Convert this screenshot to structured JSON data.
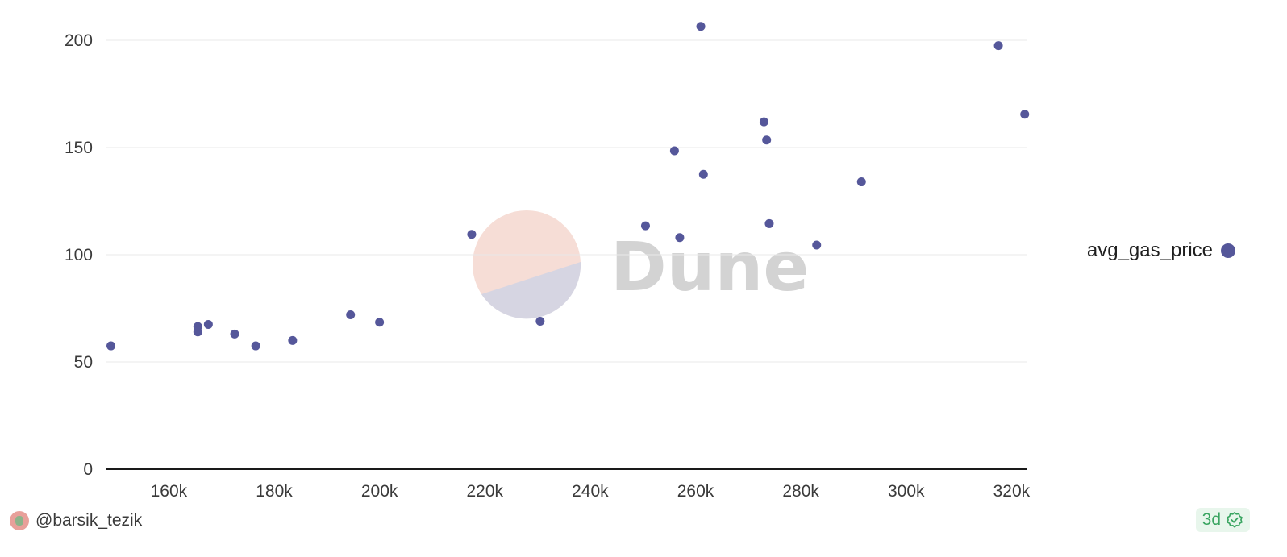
{
  "chart_data": {
    "type": "scatter",
    "title": "",
    "xlabel": "",
    "ylabel": "",
    "xlim": [
      148000,
      323000
    ],
    "ylim": [
      0,
      200
    ],
    "x_ticks": [
      "160k",
      "180k",
      "200k",
      "220k",
      "240k",
      "260k",
      "280k",
      "300k",
      "320k"
    ],
    "y_ticks": [
      "0",
      "50",
      "100",
      "150",
      "200"
    ],
    "grid": true,
    "legend_position": "right",
    "series": [
      {
        "name": "avg_gas_price",
        "color": "#55579a",
        "points": [
          [
            149000,
            57.5
          ],
          [
            165500,
            64
          ],
          [
            165500,
            66.5
          ],
          [
            167500,
            67.5
          ],
          [
            172500,
            63
          ],
          [
            176500,
            57.5
          ],
          [
            183500,
            60
          ],
          [
            194500,
            72
          ],
          [
            200000,
            68.5
          ],
          [
            217500,
            109.5
          ],
          [
            230500,
            69
          ],
          [
            250500,
            113.5
          ],
          [
            256000,
            148.5
          ],
          [
            257000,
            108
          ],
          [
            261000,
            206.5
          ],
          [
            261500,
            137.5
          ],
          [
            273000,
            162
          ],
          [
            273500,
            153.5
          ],
          [
            274000,
            114.5
          ],
          [
            283000,
            104.5
          ],
          [
            291500,
            134
          ],
          [
            317500,
            197.5
          ],
          [
            322500,
            165.5
          ]
        ]
      }
    ]
  },
  "legend": {
    "label": "avg_gas_price",
    "color": "#55579a"
  },
  "watermark": {
    "text": "Dune"
  },
  "footer": {
    "username": "@barsik_tezik",
    "age": "3d"
  }
}
